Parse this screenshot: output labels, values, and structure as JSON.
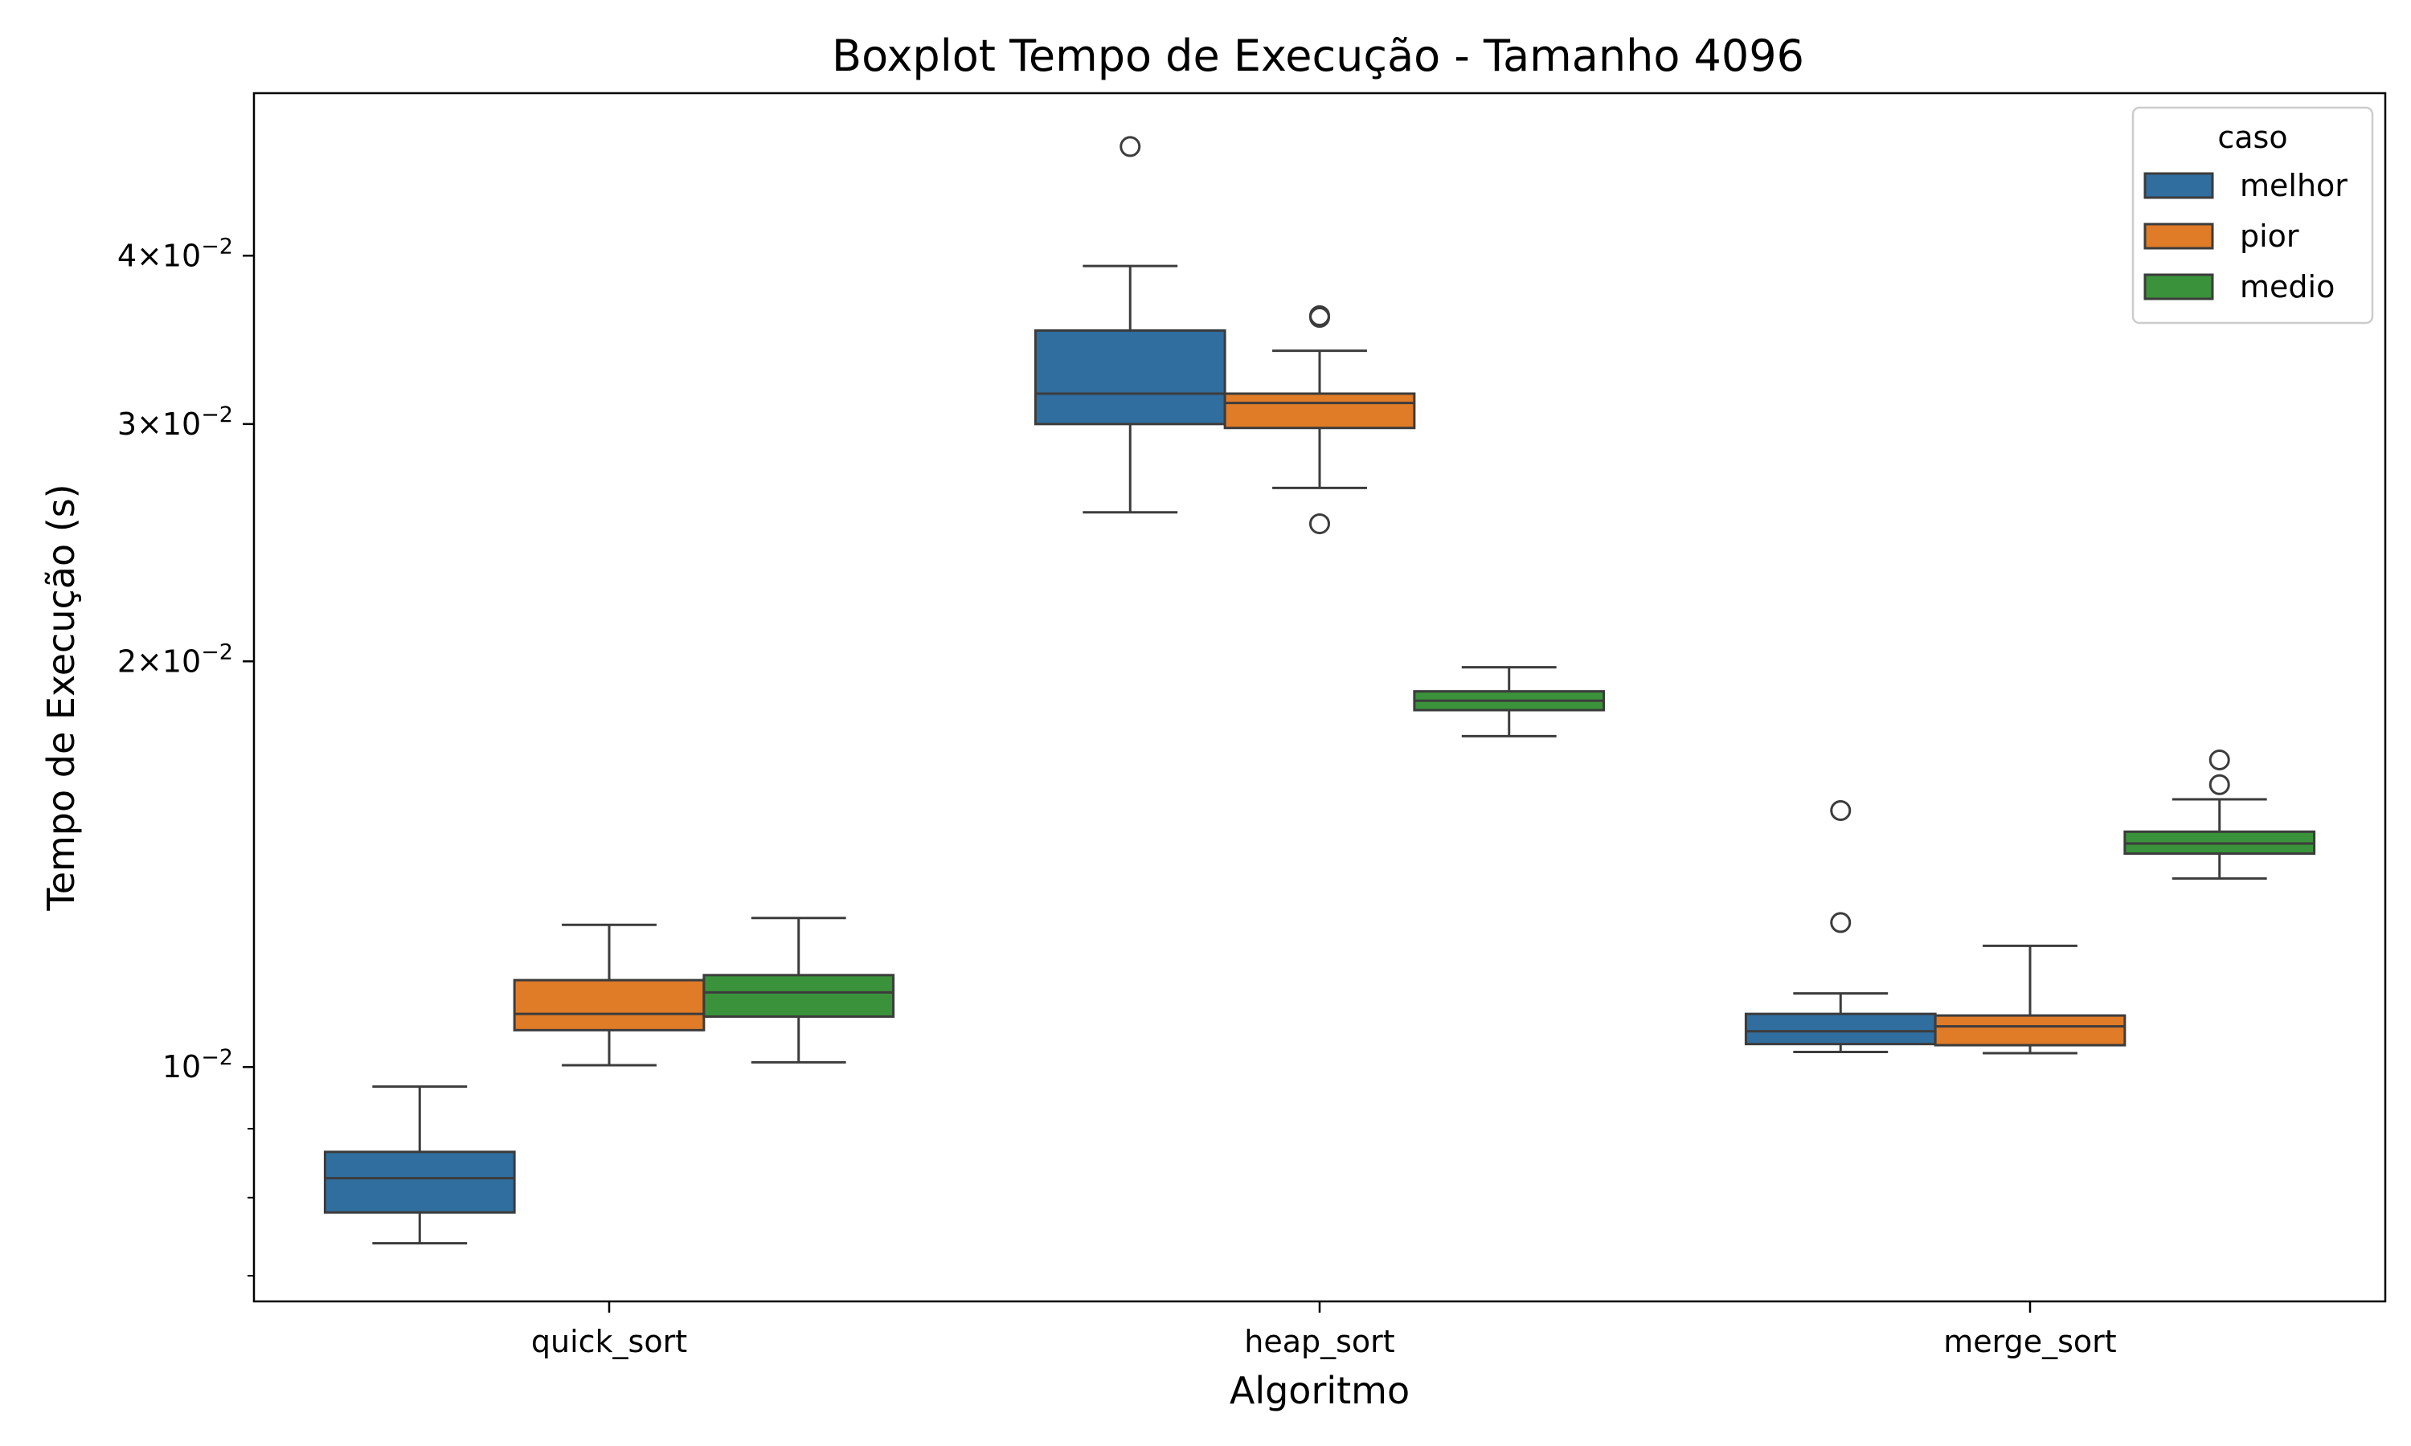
{
  "chart_data": {
    "type": "boxplot",
    "title": "Boxplot Tempo de Execução - Tamanho 4096",
    "xlabel": "Algoritmo",
    "ylabel": "Tempo de Execução (s)",
    "yscale": "log",
    "ylim": [
      0.0067,
      0.0482
    ],
    "grid": false,
    "categories": [
      "quick_sort",
      "heap_sort",
      "merge_sort"
    ],
    "y_ticks": [
      {
        "value": 0.01,
        "mantissa": "",
        "exponent": "−2"
      },
      {
        "value": 0.02,
        "mantissa": "2",
        "exponent": "−2"
      },
      {
        "value": 0.03,
        "mantissa": "3",
        "exponent": "−2"
      },
      {
        "value": 0.04,
        "mantissa": "4",
        "exponent": "−2"
      }
    ],
    "y_minor_ticks": [
      0.007,
      0.008,
      0.009
    ],
    "legend": {
      "title": "caso",
      "position": "top-right"
    },
    "series": [
      {
        "name": "melhor",
        "color": "#2f6e9e",
        "boxes": [
          {
            "whislo": 0.0074,
            "q1": 0.0078,
            "med": 0.00827,
            "q3": 0.00865,
            "whishi": 0.00967,
            "fliers": []
          },
          {
            "whislo": 0.0258,
            "q1": 0.03,
            "med": 0.0316,
            "q3": 0.0352,
            "whishi": 0.0393,
            "fliers": [
              0.0482
            ]
          },
          {
            "whislo": 0.01026,
            "q1": 0.0104,
            "med": 0.01063,
            "q3": 0.01095,
            "whishi": 0.01134,
            "fliers": [
              0.0128,
              0.0155
            ]
          }
        ]
      },
      {
        "name": "pior",
        "color": "#e07b27",
        "boxes": [
          {
            "whislo": 0.01003,
            "q1": 0.01065,
            "med": 0.01095,
            "q3": 0.0116,
            "whishi": 0.01275,
            "fliers": []
          },
          {
            "whislo": 0.0269,
            "q1": 0.0298,
            "med": 0.0311,
            "q3": 0.0316,
            "whishi": 0.034,
            "fliers": [
              0.0253,
              0.036,
              0.0361
            ]
          },
          {
            "whislo": 0.01024,
            "q1": 0.01038,
            "med": 0.01072,
            "q3": 0.01092,
            "whishi": 0.0123,
            "fliers": []
          }
        ]
      },
      {
        "name": "medio",
        "color": "#3a923a",
        "boxes": [
          {
            "whislo": 0.01008,
            "q1": 0.0109,
            "med": 0.01136,
            "q3": 0.0117,
            "whishi": 0.0129,
            "fliers": []
          },
          {
            "whislo": 0.0176,
            "q1": 0.0184,
            "med": 0.0187,
            "q3": 0.019,
            "whishi": 0.0198,
            "fliers": []
          },
          {
            "whislo": 0.0138,
            "q1": 0.0144,
            "med": 0.01465,
            "q3": 0.01495,
            "whishi": 0.0158,
            "fliers": [
              0.0162,
              0.0169
            ]
          }
        ]
      }
    ]
  }
}
